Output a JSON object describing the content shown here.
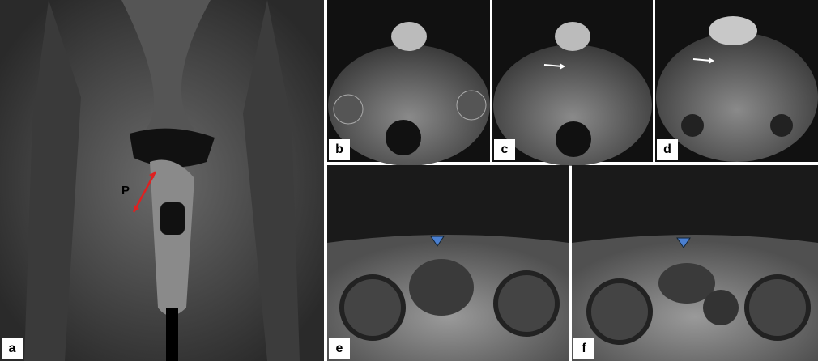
{
  "panels": [
    {
      "label": "a"
    },
    {
      "label": "b"
    },
    {
      "label": "c"
    },
    {
      "label": "d"
    },
    {
      "label": "e"
    },
    {
      "label": "f"
    }
  ],
  "annotations": [
    {
      "label": "P"
    }
  ]
}
